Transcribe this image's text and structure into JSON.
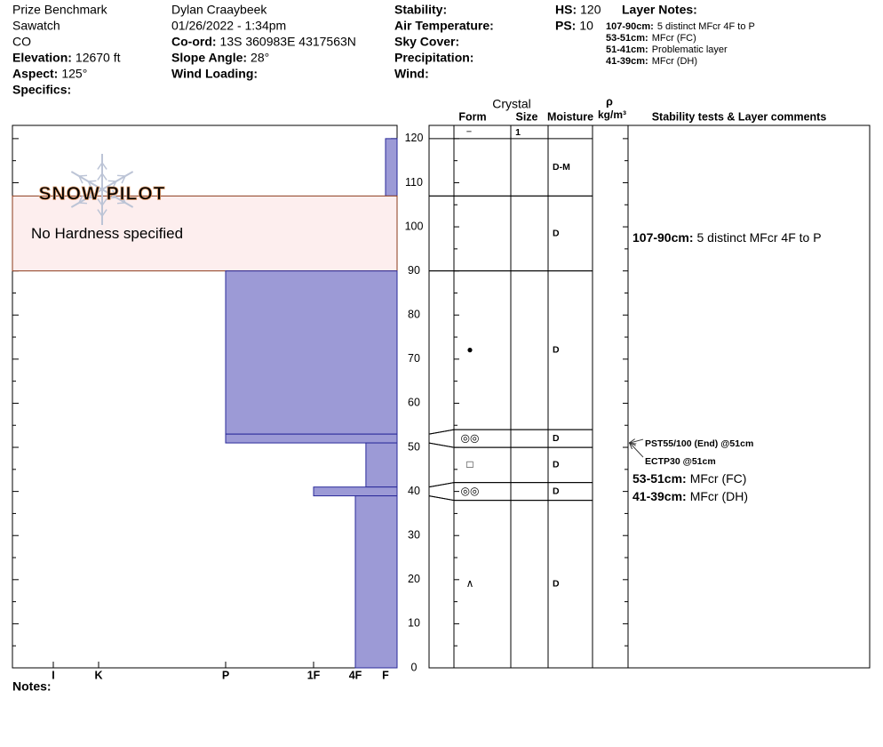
{
  "header": {
    "columns": [
      [
        {
          "text": "Prize Benchmark"
        },
        {
          "text": "Sawatch"
        },
        {
          "text": "CO"
        },
        {
          "label": "Elevation:",
          "value": "12670 ft"
        },
        {
          "label": "Aspect:",
          "value": "125°"
        },
        {
          "label": "Specifics:"
        }
      ],
      [
        {
          "text": "Dylan Craaybeek"
        },
        {
          "text": "01/26/2022 - 1:34pm"
        },
        {
          "label": "Co-ord:",
          "value": "13S 360983E 4317563N"
        },
        {
          "label": "Slope Angle:",
          "value": "28°"
        },
        {
          "label": "Wind Loading:"
        }
      ],
      [
        {
          "label": "Stability:"
        },
        {
          "label": "Air Temperature:"
        },
        {
          "label": "Sky Cover:"
        },
        {
          "label": "Precipitation:"
        },
        {
          "label": "Wind:"
        }
      ],
      [
        {
          "label": "HS:",
          "value": "120"
        },
        {
          "label": "PS:",
          "value": "10"
        }
      ]
    ]
  },
  "layer_notes": {
    "title": "Layer Notes:",
    "items": [
      {
        "label": "107-90cm:",
        "value": "5 distinct MFcr 4F to P"
      },
      {
        "label": "53-51cm:",
        "value": "MFcr (FC)"
      },
      {
        "label": "51-41cm:",
        "value": "Problematic layer"
      },
      {
        "label": "41-39cm:",
        "value": "MFcr (DH)"
      }
    ]
  },
  "chart_data": {
    "type": "snow_profile",
    "ylim": [
      0,
      123
    ],
    "yticks": [
      0,
      10,
      20,
      30,
      40,
      50,
      60,
      70,
      80,
      90,
      100,
      110,
      120
    ],
    "hardness_ticks": [
      {
        "value": 6,
        "label": "I"
      },
      {
        "value": 5,
        "label": "K"
      },
      {
        "value": 4,
        "label": "P"
      },
      {
        "value": 3,
        "label": "1F"
      },
      {
        "value": 2,
        "label": "4F"
      },
      {
        "value": 1,
        "label": "F"
      }
    ],
    "watermark": "SNOW PILOT",
    "color": "#9c9ad6",
    "columns": {
      "crystal": "Crystal",
      "form": "Form",
      "size": "Size",
      "moisture": "Moisture",
      "density_symbol": "ρ",
      "density_unit": "kg/m³",
      "comments": "Stability tests & Layer comments"
    },
    "surface_row": {
      "form": "−",
      "size": "1"
    },
    "layers": [
      {
        "top": 120,
        "bottom": 107,
        "hardness": 1,
        "moisture": "D-M"
      },
      {
        "top": 107,
        "bottom": 90,
        "hardness": null,
        "hardness_note": "No Hardness specified",
        "moisture": "D",
        "comment": {
          "label": "107-90cm:",
          "value": "5 distinct MFcr 4F to P"
        }
      },
      {
        "top": 90,
        "bottom": 53,
        "hardness": 4,
        "form": "●",
        "moisture": "D"
      },
      {
        "top": 53,
        "bottom": 51,
        "hardness": 4,
        "form": "◎◎",
        "moisture": "D",
        "comment": {
          "label": "53-51cm:",
          "value": "MFcr (FC)"
        }
      },
      {
        "top": 51,
        "bottom": 41,
        "hardness": 1.65,
        "form": "□",
        "moisture": "D"
      },
      {
        "top": 41,
        "bottom": 39,
        "hardness": 3,
        "form": "◎◎",
        "moisture": "D",
        "comment": {
          "label": "41-39cm:",
          "value": "MFcr (DH)"
        }
      },
      {
        "top": 39,
        "bottom": 0,
        "hardness": 2,
        "form": "∧",
        "moisture": "D"
      }
    ],
    "stability_tests": [
      {
        "text": "PST55/100 (End) @51cm",
        "height": 51
      },
      {
        "text": "ECTP30 @51cm",
        "height": 51
      }
    ]
  },
  "notes": "Notes:"
}
